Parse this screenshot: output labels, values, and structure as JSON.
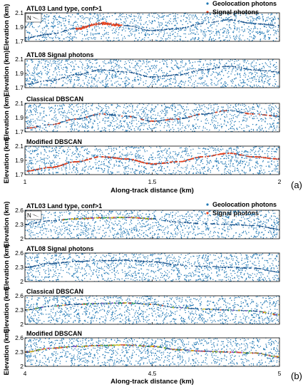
{
  "figure_labels": [
    "(a)",
    "(b)"
  ],
  "north_label": "N",
  "colors": {
    "geolocation": "#1f77b4",
    "signal_red": "#e8401c",
    "signal_yellow": "#d8c41a",
    "signal_purple": "#9b59d0",
    "signal_green": "#22aa33"
  },
  "chart_data": [
    {
      "type": "scatter",
      "id": "a",
      "legend": [
        "Geolocation photons",
        "Signal photons"
      ],
      "legend_position": "top-right",
      "xlabel": "Along-track distance (km)",
      "ylabel": "Elevation (km)",
      "xlim": [
        1,
        2
      ],
      "xticks": [
        "1",
        "1.5",
        "2"
      ],
      "xtick_values": [
        1,
        1.5,
        2
      ],
      "ylim": [
        1.7,
        2.1
      ],
      "yticks": [
        "1.7",
        "1.9",
        "2.1"
      ],
      "ytick_values": [
        1.7,
        1.9,
        2.1
      ],
      "subplots": [
        {
          "title": "ATL03 Land type, conf>1",
          "signal": "partial"
        },
        {
          "title": "ATL08 Signal photons",
          "signal": "none"
        },
        {
          "title": "Classical DBSCAN",
          "signal": "sparse"
        },
        {
          "title": "Modified DBSCAN",
          "signal": "full"
        }
      ],
      "terrain_profile": {
        "x": [
          1.0,
          1.1,
          1.2,
          1.3,
          1.4,
          1.5,
          1.6,
          1.7,
          1.8,
          1.9,
          2.0
        ],
        "y": [
          1.75,
          1.8,
          1.88,
          1.95,
          1.92,
          1.85,
          1.88,
          1.95,
          2.0,
          1.95,
          1.92
        ]
      }
    },
    {
      "type": "scatter",
      "id": "b",
      "legend": [
        "Geolocation photons",
        "Signal photons"
      ],
      "legend_position": "top-right",
      "xlabel": "Along-track distance (km)",
      "ylabel": "Elevation (km)",
      "xlim": [
        4,
        5
      ],
      "xticks": [
        "4",
        "4.5",
        "5"
      ],
      "xtick_values": [
        4,
        4.5,
        5
      ],
      "ylim": [
        2.0,
        2.6
      ],
      "yticks": [
        "2",
        "2.3",
        "2.6"
      ],
      "ytick_values": [
        2.0,
        2.3,
        2.6
      ],
      "subplots": [
        {
          "title": "ATL03 Land type, conf>1",
          "signal": "partial"
        },
        {
          "title": "ATL08 Signal photons",
          "signal": "none"
        },
        {
          "title": "Classical DBSCAN",
          "signal": "sparse"
        },
        {
          "title": "Modified DBSCAN",
          "signal": "full"
        }
      ],
      "terrain_profile": {
        "x": [
          4.0,
          4.1,
          4.2,
          4.3,
          4.4,
          4.5,
          4.6,
          4.7,
          4.8,
          4.9,
          5.0
        ],
        "y": [
          2.3,
          2.38,
          2.42,
          2.44,
          2.45,
          2.42,
          2.35,
          2.32,
          2.3,
          2.28,
          2.2
        ]
      }
    }
  ]
}
